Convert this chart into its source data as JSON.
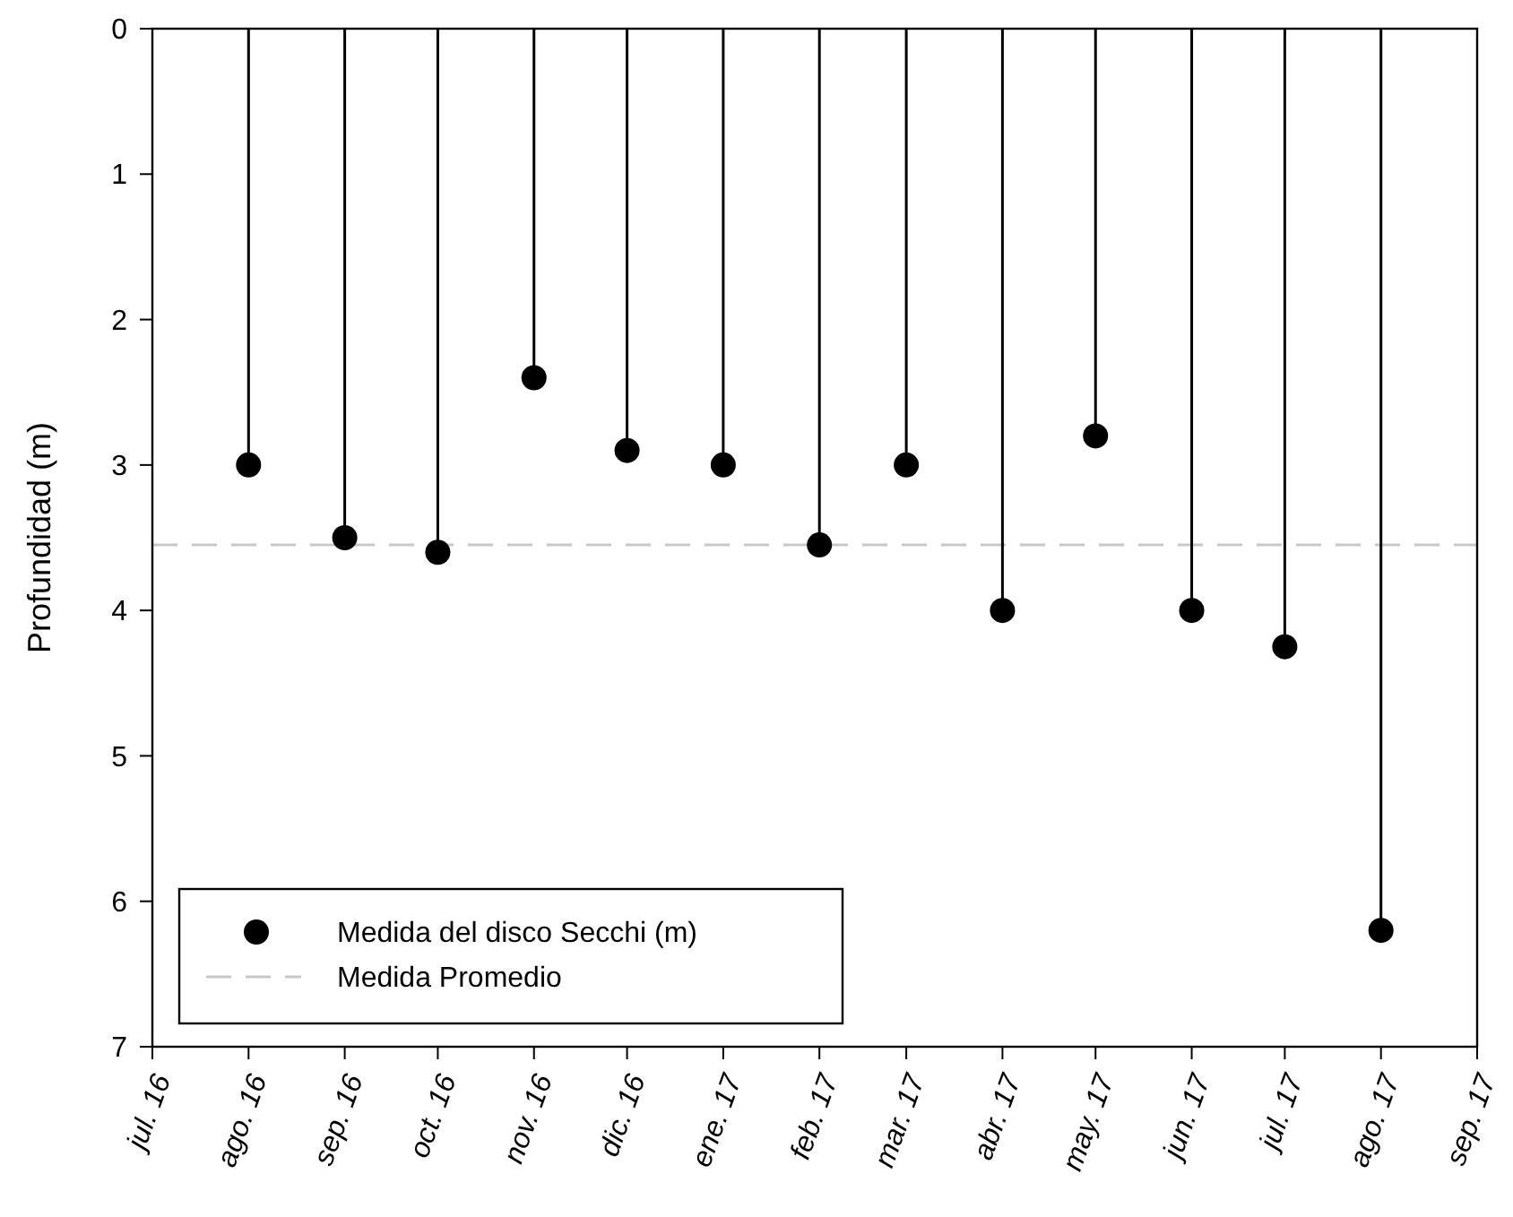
{
  "chart_data": {
    "type": "lollipop",
    "ylabel": "Profundidad (m)",
    "x": [
      "2016-08",
      "2016-09",
      "2016-10",
      "2016-11",
      "2016-12",
      "2017-01",
      "2017-02",
      "2017-03",
      "2017-04",
      "2017-05",
      "2017-06",
      "2017-07",
      "2017-08"
    ],
    "series": [
      {
        "name": "Medida del disco Secchi (m)",
        "color": "#000000",
        "values": [
          3.0,
          3.5,
          3.6,
          2.4,
          2.9,
          3.0,
          3.55,
          3.0,
          4.0,
          2.8,
          4.0,
          4.25,
          6.2
        ]
      }
    ],
    "xlim": [
      "2016-07",
      "2017-09"
    ],
    "xticks": [
      {
        "value": "2016-07",
        "label": "jul. 16"
      },
      {
        "value": "2016-08",
        "label": "ago. 16"
      },
      {
        "value": "2016-09",
        "label": "sep. 16"
      },
      {
        "value": "2016-10",
        "label": "oct. 16"
      },
      {
        "value": "2016-11",
        "label": "nov. 16"
      },
      {
        "value": "2016-12",
        "label": "dic. 16"
      },
      {
        "value": "2017-01",
        "label": "ene. 17"
      },
      {
        "value": "2017-02",
        "label": "feb. 17"
      },
      {
        "value": "2017-03",
        "label": "mar. 17"
      },
      {
        "value": "2017-04",
        "label": "abr. 17"
      },
      {
        "value": "2017-05",
        "label": "may. 17"
      },
      {
        "value": "2017-06",
        "label": "jun. 17"
      },
      {
        "value": "2017-07",
        "label": "jul. 17"
      },
      {
        "value": "2017-08",
        "label": "ago. 17"
      },
      {
        "value": "2017-09",
        "label": "sep. 17"
      }
    ],
    "ylim": [
      7,
      0
    ],
    "yticks": [
      0,
      1,
      2,
      3,
      4,
      5,
      6,
      7
    ],
    "ref_lines": [
      {
        "axis": "y",
        "value": 3.55,
        "label": "Medida Promedio",
        "color": "#c8c8c8",
        "line_style": "dashed"
      }
    ],
    "marker": "circle",
    "legend": "bottom left"
  }
}
